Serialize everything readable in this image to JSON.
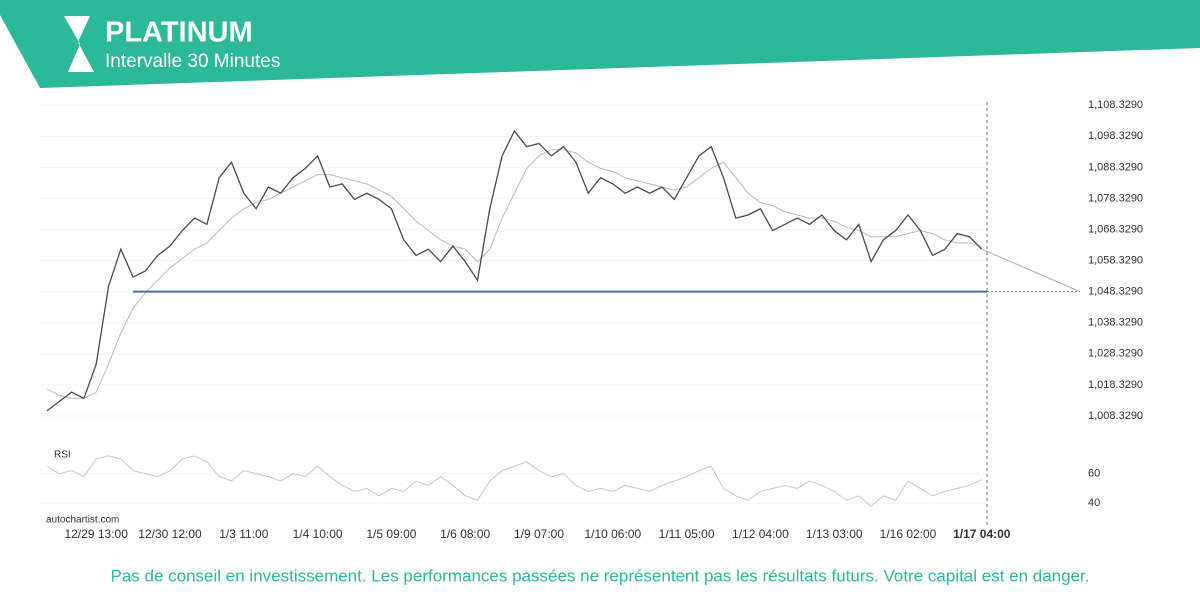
{
  "chart_data": {
    "type": "line",
    "title": "PLATINUM",
    "subtitle": "Intervalle 30 Minutes",
    "categories": [
      null,
      null,
      null,
      null,
      "12/29 13:00",
      null,
      null,
      null,
      null,
      null,
      "12/30 12:00",
      null,
      null,
      null,
      null,
      null,
      "1/3 11:00",
      null,
      null,
      null,
      null,
      null,
      "1/4 10:00",
      null,
      null,
      null,
      null,
      null,
      "1/5 09:00",
      null,
      null,
      null,
      null,
      null,
      "1/6 08:00",
      null,
      null,
      null,
      null,
      null,
      "1/9 07:00",
      null,
      null,
      null,
      null,
      null,
      "1/10 06:00",
      null,
      null,
      null,
      null,
      null,
      "1/11 05:00",
      null,
      null,
      null,
      null,
      null,
      "1/12 04:00",
      null,
      null,
      null,
      null,
      null,
      "1/13 03:00",
      null,
      null,
      null,
      null,
      null,
      "1/16 02:00",
      null,
      null,
      null,
      null,
      null,
      "1/17 04:00"
    ],
    "values": [
      1010,
      1013,
      1016,
      1014,
      1025,
      1050,
      1062,
      1053,
      1055,
      1060,
      1063,
      1068,
      1072,
      1070,
      1085,
      1090,
      1080,
      1075,
      1082,
      1080,
      1085,
      1088,
      1092,
      1082,
      1083,
      1078,
      1080,
      1078,
      1075,
      1065,
      1060,
      1062,
      1058,
      1063,
      1058,
      1052,
      1075,
      1092,
      1100,
      1095,
      1096,
      1092,
      1095,
      1090,
      1080,
      1085,
      1083,
      1080,
      1082,
      1080,
      1082,
      1078,
      1085,
      1092,
      1095,
      1085,
      1072,
      1073,
      1075,
      1068,
      1070,
      1072,
      1070,
      1073,
      1068,
      1065,
      1070,
      1058,
      1065,
      1068,
      1073,
      1068,
      1060,
      1062,
      1067,
      1066,
      1062
    ],
    "color": "#4a4a4a",
    "ma_values": [
      1017,
      1015,
      1014,
      1014,
      1016,
      1025,
      1035,
      1043,
      1048,
      1052,
      1056,
      1059,
      1062,
      1064,
      1068,
      1072,
      1075,
      1077,
      1078,
      1080,
      1082,
      1084,
      1086,
      1086,
      1085,
      1084,
      1083,
      1081,
      1079,
      1075,
      1071,
      1068,
      1065,
      1063,
      1062,
      1058,
      1062,
      1072,
      1080,
      1088,
      1092,
      1094,
      1094,
      1093,
      1090,
      1088,
      1087,
      1085,
      1084,
      1083,
      1082,
      1081,
      1082,
      1085,
      1088,
      1090,
      1085,
      1080,
      1077,
      1076,
      1074,
      1073,
      1072,
      1072,
      1071,
      1069,
      1068,
      1066,
      1066,
      1066,
      1067,
      1068,
      1067,
      1065,
      1064,
      1064,
      1063
    ],
    "ma_color": "#bbbbbb",
    "ylim": [
      1000.6,
      1110
    ],
    "yticks": [
      {
        "value": 1108.329,
        "label": "1,108.3290"
      },
      {
        "value": 1098.329,
        "label": "1,098.3290"
      },
      {
        "value": 1088.329,
        "label": "1,088.3290"
      },
      {
        "value": 1078.329,
        "label": "1,078.3290"
      },
      {
        "value": 1068.329,
        "label": "1,068.3290"
      },
      {
        "value": 1058.329,
        "label": "1,058.3290"
      },
      {
        "value": 1048.329,
        "label": "1,048.3290"
      },
      {
        "value": 1038.329,
        "label": "1,038.3290"
      },
      {
        "value": 1028.329,
        "label": "1,028.3290"
      },
      {
        "value": 1018.329,
        "label": "1,018.3290"
      },
      {
        "value": 1008.329,
        "label": "1,008.3290"
      }
    ],
    "support_level": 1048.329,
    "support_color": "#4a6fa5",
    "rsi": {
      "label": "RSI",
      "values": [
        65,
        60,
        62,
        58,
        70,
        72,
        70,
        62,
        60,
        58,
        62,
        70,
        72,
        68,
        58,
        55,
        62,
        60,
        58,
        55,
        60,
        58,
        65,
        58,
        52,
        48,
        50,
        45,
        50,
        48,
        55,
        52,
        58,
        52,
        45,
        42,
        55,
        62,
        65,
        68,
        62,
        58,
        60,
        52,
        48,
        50,
        48,
        52,
        50,
        48,
        52,
        55,
        58,
        62,
        65,
        50,
        45,
        42,
        48,
        50,
        52,
        50,
        55,
        52,
        48,
        42,
        45,
        38,
        45,
        42,
        55,
        50,
        45,
        48,
        50,
        52,
        56
      ],
      "color": "#c8c8c8",
      "ylim": [
        32,
        76
      ],
      "yticks": [
        60,
        40
      ]
    },
    "source": "autochartist.com"
  },
  "footer": "Pas de conseil en investissement. Les performances passées ne représentent pas les résultats futurs. Votre capital est en danger."
}
